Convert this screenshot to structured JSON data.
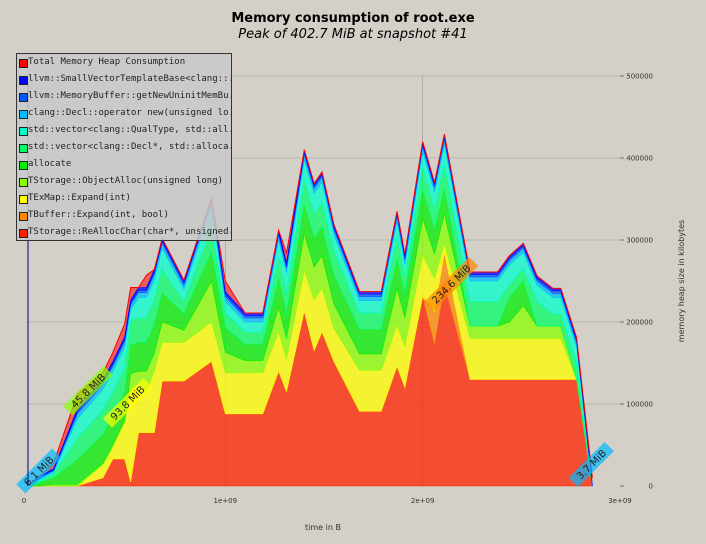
{
  "title": "Memory consumption of root.exe",
  "subtitle": "Peak of 402.7 MiB at snapshot #41",
  "chart_data": {
    "type": "area",
    "title": "Memory consumption of root.exe",
    "subtitle": "Peak of 402.7 MiB at snapshot #41",
    "xlabel": "time in B",
    "ylabel": "memory heap size in kilobytes",
    "xlim": [
      0,
      3000000000
    ],
    "ylim": [
      0,
      500000
    ],
    "x_ticks": [
      {
        "value": 0,
        "label": "0"
      },
      {
        "value": 1000000000,
        "label": "1e+09"
      },
      {
        "value": 2000000000,
        "label": "2e+09"
      },
      {
        "value": 3000000000,
        "label": "3e+09"
      }
    ],
    "y_ticks": [
      {
        "value": 0,
        "label": "0"
      },
      {
        "value": 100000,
        "label": "100000"
      },
      {
        "value": 200000,
        "label": "200000"
      },
      {
        "value": 300000,
        "label": "300000"
      },
      {
        "value": 400000,
        "label": "400000"
      },
      {
        "value": 500000,
        "label": "500000"
      }
    ],
    "grid": true,
    "legend_position": "top-left",
    "x": [
      0,
      60000000,
      130000000,
      250000000,
      380000000,
      430000000,
      490000000,
      520000000,
      560000000,
      600000000,
      640000000,
      680000000,
      790000000,
      930000000,
      1000000000,
      1100000000,
      1190000000,
      1270000000,
      1310000000,
      1400000000,
      1450000000,
      1490000000,
      1550000000,
      1680000000,
      1790000000,
      1870000000,
      1910000000,
      2000000000,
      2060000000,
      2110000000,
      2240000000,
      2380000000,
      2440000000,
      2510000000,
      2580000000,
      2660000000,
      2700000000,
      2780000000,
      2860000000
    ],
    "series": [
      {
        "name": "TStorage::ReAllocChar(char*, unsigned...",
        "color": "#ff2200",
        "values": [
          0,
          0,
          0,
          0,
          10000,
          33000,
          33000,
          5000,
          65000,
          65000,
          65000,
          128000,
          128000,
          152000,
          88000,
          88000,
          88000,
          140000,
          115000,
          213000,
          165000,
          188000,
          152000,
          91000,
          91000,
          146000,
          120000,
          231000,
          173000,
          245000,
          130000,
          130000,
          130000,
          130000,
          130000,
          130000,
          130000,
          130000,
          0
        ]
      },
      {
        "name": "TBuffer::Expand(int, bool)",
        "color": "#ff8800",
        "values": [
          0,
          0,
          0,
          0,
          0,
          0,
          0,
          0,
          0,
          0,
          0,
          0,
          0,
          0,
          0,
          0,
          0,
          0,
          0,
          0,
          0,
          0,
          0,
          0,
          0,
          0,
          0,
          0,
          40000,
          40000,
          0,
          0,
          0,
          0,
          0,
          0,
          0,
          0,
          0
        ]
      },
      {
        "name": "TExMap::Expand(int)",
        "color": "#ffff00",
        "values": [
          0,
          0,
          0,
          0,
          16000,
          15000,
          45000,
          112000,
          60000,
          50000,
          75000,
          47000,
          47000,
          48000,
          50000,
          50000,
          50000,
          48000,
          40000,
          50000,
          62000,
          53000,
          40000,
          50000,
          50000,
          50000,
          50000,
          50000,
          40000,
          10000,
          50000,
          50000,
          50000,
          50000,
          50000,
          50000,
          50000,
          0,
          0
        ]
      },
      {
        "name": "TStorage::ObjectAlloc(unsigned long)",
        "color": "#88ff00",
        "values": [
          0,
          0,
          2000,
          2000,
          2000,
          2000,
          2000,
          20000,
          15000,
          25000,
          22000,
          25000,
          15000,
          50000,
          25000,
          15000,
          15000,
          30000,
          25000,
          45000,
          40000,
          40000,
          30000,
          20000,
          20000,
          45000,
          35000,
          45000,
          30000,
          37000,
          15000,
          15000,
          20000,
          40000,
          15000,
          15000,
          15000,
          0,
          0
        ]
      },
      {
        "name": "allocate",
        "color": "#00ee00",
        "values": [
          0,
          4000,
          8000,
          30000,
          35000,
          35000,
          35000,
          35000,
          35000,
          35000,
          35000,
          35000,
          20000,
          35000,
          30000,
          20000,
          20000,
          35000,
          30000,
          35000,
          35000,
          35000,
          35000,
          30000,
          30000,
          35000,
          30000,
          35000,
          30000,
          30000,
          0,
          0,
          30000,
          30000,
          0,
          0,
          0,
          0,
          0
        ]
      },
      {
        "name": "std::vector<clang::Decl*, std::alloca...",
        "color": "#00ff66",
        "values": [
          0,
          2000,
          5000,
          26000,
          30000,
          30000,
          30000,
          30000,
          30000,
          30000,
          30000,
          30000,
          15000,
          30000,
          18000,
          15000,
          15000,
          27000,
          25000,
          30000,
          30000,
          30000,
          30000,
          20000,
          20000,
          27000,
          20000,
          27000,
          25000,
          30000,
          30000,
          30000,
          15000,
          15000,
          30000,
          15000,
          15000,
          20000,
          0
        ]
      },
      {
        "name": "std::vector<clang::QualType, std::all...",
        "color": "#00ffcc",
        "values": [
          0,
          2000,
          2000,
          24000,
          25000,
          25000,
          25000,
          13000,
          25000,
          25000,
          25000,
          25000,
          15000,
          25000,
          14000,
          12000,
          12000,
          20000,
          25000,
          25000,
          25000,
          25000,
          20000,
          15000,
          15000,
          20000,
          15000,
          20000,
          20000,
          25000,
          25000,
          25000,
          25000,
          20000,
          20000,
          20000,
          20000,
          20000,
          0
        ]
      },
      {
        "name": "clang::Decl::operator new(unsigned lo...",
        "color": "#00bbff",
        "values": [
          0,
          2000,
          2000,
          6000,
          6000,
          6000,
          6000,
          6000,
          6000,
          6000,
          6000,
          6000,
          5000,
          6000,
          6000,
          5000,
          5000,
          6000,
          6000,
          6000,
          6000,
          6000,
          6000,
          5000,
          5000,
          6000,
          6000,
          6000,
          6000,
          6000,
          5000,
          5000,
          5000,
          5000,
          5000,
          5000,
          5000,
          5000,
          0
        ]
      },
      {
        "name": "llvm::MemoryBuffer::getNewUninitMemBu...",
        "color": "#0055ff",
        "values": [
          0,
          1000,
          1000,
          3000,
          3000,
          3000,
          3000,
          3000,
          3000,
          3000,
          3000,
          3000,
          3000,
          3000,
          3000,
          3000,
          3000,
          3000,
          3000,
          3000,
          3000,
          3000,
          3000,
          3000,
          3000,
          3000,
          3000,
          3000,
          3000,
          3000,
          3000,
          3000,
          3000,
          3000,
          3000,
          3000,
          3000,
          3000,
          0
        ]
      },
      {
        "name": "llvm::SmallVectorTemplateBase<clang::...",
        "color": "#0000ff",
        "values": [
          0,
          1000,
          1000,
          3000,
          3000,
          3000,
          3000,
          3000,
          3000,
          3000,
          3000,
          3000,
          3000,
          3000,
          3000,
          3000,
          3000,
          3000,
          3000,
          3000,
          3000,
          3000,
          3000,
          3000,
          3000,
          3000,
          3000,
          3000,
          3000,
          3000,
          3000,
          3000,
          3000,
          3000,
          3000,
          3000,
          3000,
          3000,
          0
        ]
      },
      {
        "name": "Total Memory Heap Consumption",
        "color": "#ff0000",
        "values": [
          0,
          12000,
          28000,
          112000,
          138000,
          163000,
          198000,
          242000,
          202000,
          257000,
          230000,
          300000,
          206000,
          322000,
          250000,
          186000,
          186000,
          306000,
          284000,
          385000,
          346000,
          360000,
          312000,
          188000,
          188000,
          318000,
          283000,
          399000,
          333000,
          412000,
          260000,
          210000,
          260000,
          283000,
          230000,
          210000,
          212000,
          166000,
          10000
        ]
      }
    ],
    "annotations": [
      {
        "text": "6.1 MiB",
        "x": 60000000,
        "y": 17000,
        "color": "#00bbff"
      },
      {
        "text": "45.8 MiB",
        "x": 310000000,
        "y": 115000,
        "color": "#88ff00"
      },
      {
        "text": "93.8 MiB",
        "x": 510000000,
        "y": 100000,
        "color": "#ffff00"
      },
      {
        "text": "234.6 MiB",
        "x": 2150000000,
        "y": 245000,
        "color": "#ff8800"
      },
      {
        "text": "3.7 MiB",
        "x": 2860000000,
        "y": 25000,
        "color": "#00bbff"
      }
    ]
  }
}
